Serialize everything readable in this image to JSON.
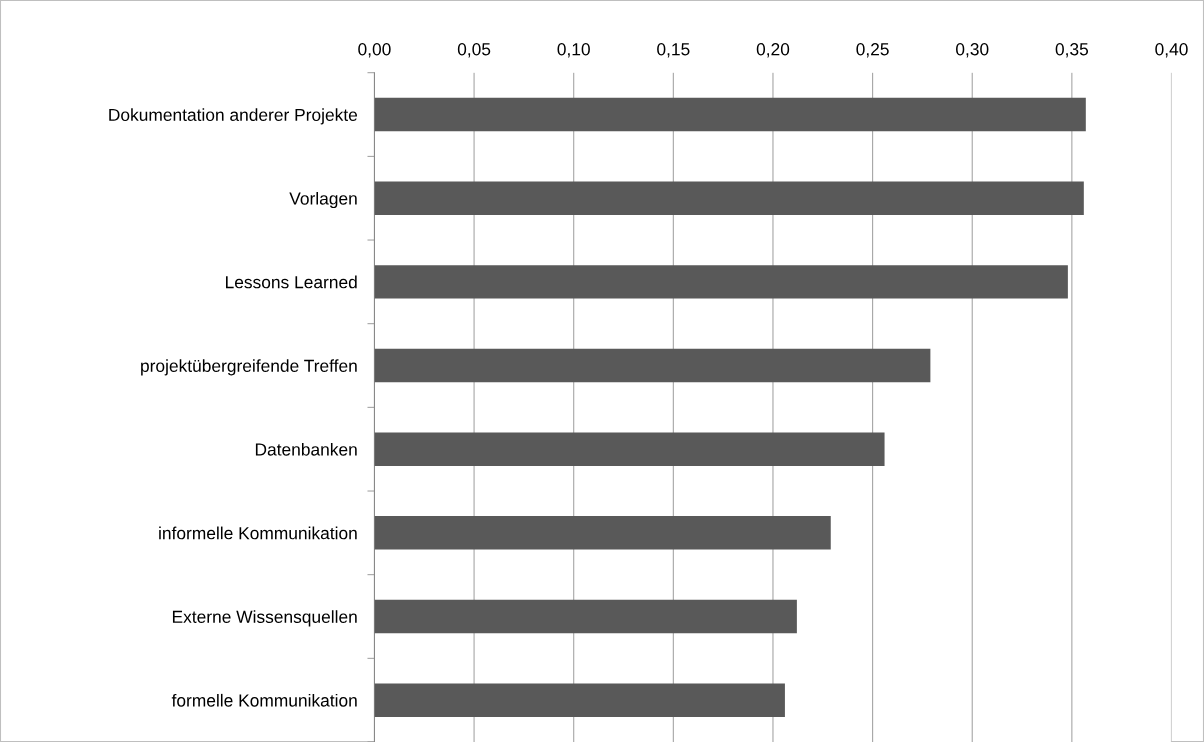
{
  "chart_data": {
    "type": "bar",
    "orientation": "horizontal",
    "categories": [
      "Dokumentation anderer Projekte",
      "Vorlagen",
      "Lessons Learned",
      "projektübergreifende Treffen",
      "Datenbanken",
      "informelle Kommunikation",
      "Externe Wissensquellen",
      "formelle Kommunikation"
    ],
    "values": [
      0.357,
      0.356,
      0.348,
      0.279,
      0.256,
      0.229,
      0.212,
      0.206
    ],
    "color": "#595959",
    "xlim": [
      0,
      0.4
    ],
    "xticks": [
      {
        "value": 0,
        "label": "0,00"
      },
      {
        "value": 0.05,
        "label": "0,05"
      },
      {
        "value": 0.1,
        "label": "0,10"
      },
      {
        "value": 0.15,
        "label": "0,15"
      },
      {
        "value": 0.2,
        "label": "0,20"
      },
      {
        "value": 0.25,
        "label": "0,25"
      },
      {
        "value": 0.3,
        "label": "0,30"
      },
      {
        "value": 0.35,
        "label": "0,35"
      },
      {
        "value": 0.4,
        "label": "0,40"
      }
    ],
    "grid": "x",
    "legend": false
  }
}
